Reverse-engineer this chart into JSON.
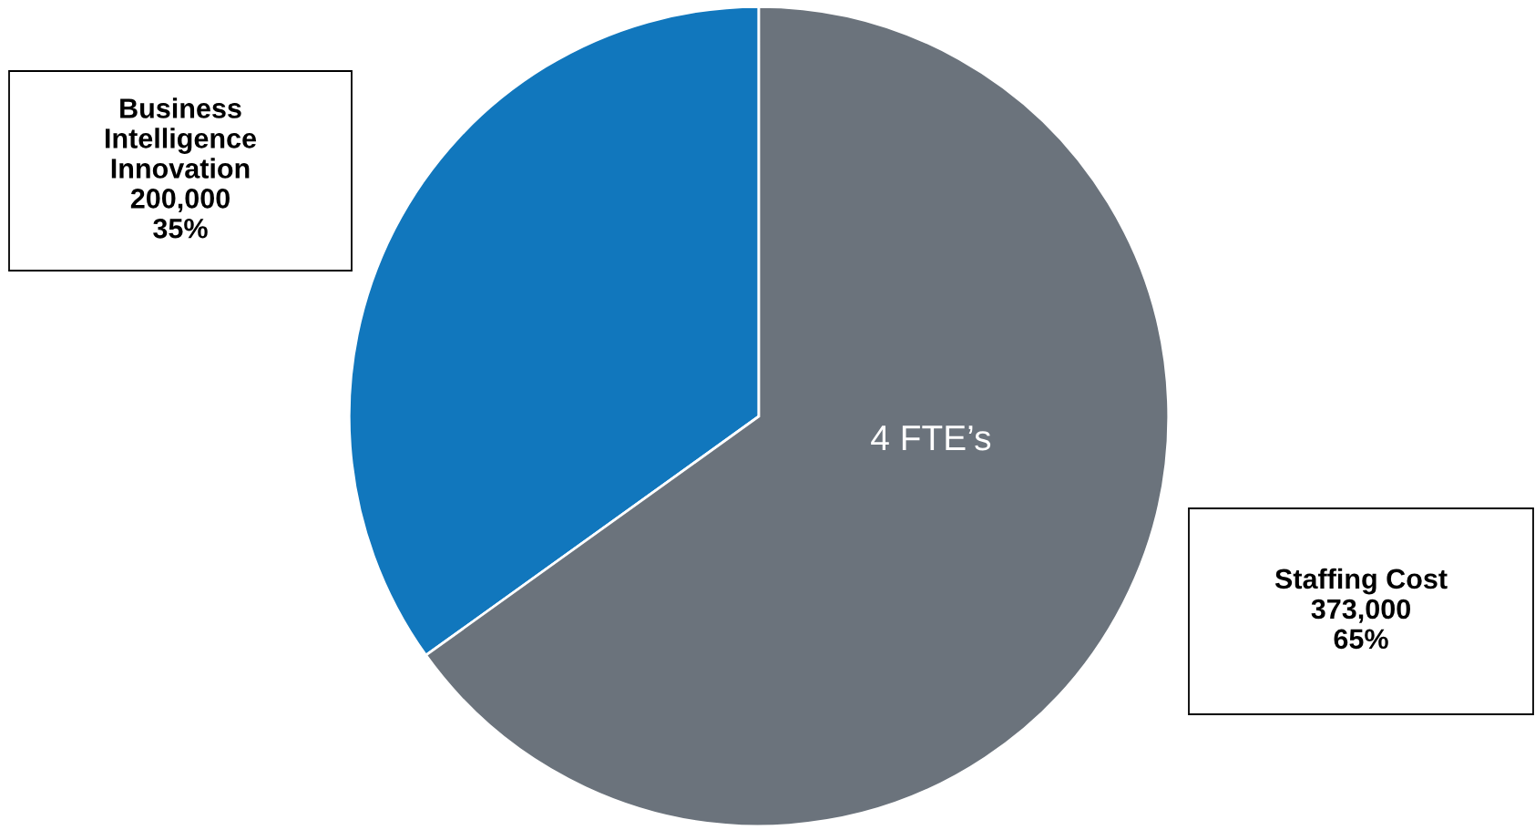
{
  "chart_data": {
    "type": "pie",
    "categories": [
      "Business Intelligence Innovation",
      "Staffing Cost"
    ],
    "values": [
      200000,
      373000
    ],
    "colors": [
      "#1177bd",
      "#6b737c"
    ],
    "value_labels": [
      "200,000\n35%",
      "373,000\n65%"
    ],
    "annotations": [
      "4 FTE’s"
    ]
  }
}
